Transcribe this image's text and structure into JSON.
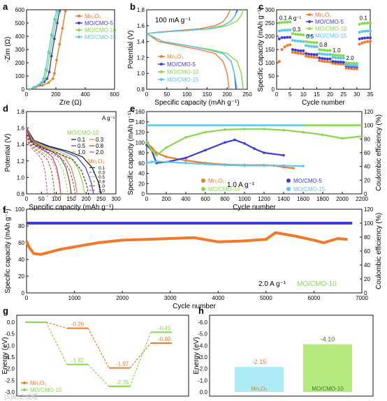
{
  "colors": {
    "mn2o3": "#F07A2C",
    "mo5": "#3C3CD6",
    "mo10": "#86D94A",
    "mo15": "#5BC8E8",
    "black": "#111111"
  },
  "chart_data": [
    {
      "panel": "a",
      "type": "line",
      "xlabel": "Zre (Ω)",
      "ylabel": "-Zim (Ω)",
      "xlim": [
        0,
        600
      ],
      "ylim": [
        0,
        600
      ],
      "xticks": [
        "0",
        "200",
        "400",
        "600"
      ],
      "yticks": [
        "0",
        "100",
        "200",
        "300",
        "400",
        "500",
        "600"
      ],
      "legend": [
        "Mn₂O₃",
        "MO/CMO-5",
        "MO/CMO-10",
        "MO/CMO-15"
      ],
      "series": [
        {
          "name": "Mn₂O₃",
          "x": [
            20,
            60,
            110,
            150,
            180,
            190,
            205,
            225,
            245,
            265
          ],
          "y": [
            0,
            15,
            30,
            50,
            80,
            120,
            220,
            340,
            460,
            590
          ]
        },
        {
          "name": "MO/CMO-5",
          "x": [
            20,
            50,
            90,
            120,
            140,
            155,
            170,
            190,
            210,
            225
          ],
          "y": [
            0,
            15,
            35,
            55,
            80,
            130,
            250,
            380,
            500,
            590
          ]
        },
        {
          "name": "MO/CMO-10",
          "x": [
            20,
            50,
            80,
            110,
            125,
            140,
            160,
            180,
            200,
            215
          ],
          "y": [
            0,
            15,
            30,
            50,
            80,
            140,
            270,
            400,
            520,
            590
          ]
        },
        {
          "name": "MO/CMO-15",
          "x": [
            20,
            50,
            80,
            100,
            115,
            130,
            150,
            170,
            190,
            205
          ],
          "y": [
            0,
            15,
            30,
            50,
            80,
            150,
            280,
            410,
            530,
            590
          ]
        }
      ]
    },
    {
      "panel": "b",
      "type": "line",
      "xlabel": "Specific capacity (mAh g⁻¹)",
      "ylabel": "Potential (V)",
      "annotation": "100 mA g⁻¹",
      "xlim": [
        0,
        250
      ],
      "ylim": [
        0.8,
        1.8
      ],
      "xticks": [
        "0",
        "50",
        "100",
        "150",
        "200",
        "250"
      ],
      "yticks": [
        "0.8",
        "1.0",
        "1.2",
        "1.4",
        "1.6",
        "1.8"
      ],
      "legend": [
        "Mn₂O₃",
        "MO/CMO-5",
        "MO/CMO-10",
        "MO/CMO-15"
      ],
      "series": [
        {
          "name": "Mn₂O₃ charge",
          "x": [
            0,
            30,
            80,
            130,
            170,
            190,
            200,
            208
          ],
          "y": [
            1.5,
            1.52,
            1.54,
            1.56,
            1.6,
            1.65,
            1.72,
            1.8
          ]
        },
        {
          "name": "Mn₂O₃ discharge",
          "x": [
            0,
            30,
            80,
            130,
            170,
            190,
            200,
            205
          ],
          "y": [
            1.5,
            1.4,
            1.35,
            1.3,
            1.25,
            1.15,
            1.0,
            0.8
          ]
        },
        {
          "name": "MO/CMO-5 charge",
          "x": [
            0,
            40,
            100,
            150,
            190,
            210,
            220,
            225
          ],
          "y": [
            1.5,
            1.52,
            1.54,
            1.56,
            1.6,
            1.66,
            1.73,
            1.8
          ]
        },
        {
          "name": "MO/CMO-5 discharge",
          "x": [
            0,
            40,
            100,
            150,
            190,
            210,
            218,
            222
          ],
          "y": [
            1.5,
            1.4,
            1.35,
            1.3,
            1.25,
            1.15,
            1.0,
            0.8
          ]
        },
        {
          "name": "MO/CMO-10 charge",
          "x": [
            0,
            40,
            100,
            160,
            200,
            225,
            235,
            240
          ],
          "y": [
            1.5,
            1.52,
            1.54,
            1.56,
            1.6,
            1.66,
            1.73,
            1.8
          ]
        },
        {
          "name": "MO/CMO-10 discharge",
          "x": [
            0,
            40,
            100,
            160,
            200,
            225,
            235,
            240
          ],
          "y": [
            1.5,
            1.4,
            1.35,
            1.3,
            1.25,
            1.15,
            1.0,
            0.8
          ]
        },
        {
          "name": "MO/CMO-15 charge",
          "x": [
            0,
            40,
            100,
            150,
            190,
            210,
            220,
            228
          ],
          "y": [
            1.5,
            1.52,
            1.54,
            1.56,
            1.6,
            1.66,
            1.73,
            1.8
          ]
        },
        {
          "name": "MO/CMO-15 discharge",
          "x": [
            0,
            40,
            100,
            150,
            190,
            210,
            218,
            225
          ],
          "y": [
            1.5,
            1.4,
            1.35,
            1.3,
            1.25,
            1.15,
            1.0,
            0.8
          ]
        }
      ]
    },
    {
      "panel": "c",
      "type": "scatter",
      "xlabel": "Cycle number",
      "ylabel": "Specific capacity (mAh g⁻¹)",
      "xlim": [
        0,
        35
      ],
      "ylim": [
        0,
        300
      ],
      "xticks": [
        "0",
        "5",
        "10",
        "15",
        "20",
        "25",
        "30",
        "35"
      ],
      "yticks": [
        "0",
        "50",
        "100",
        "150",
        "200",
        "250",
        "300"
      ],
      "rate_labels": [
        "0.1 A g⁻¹",
        "0.3",
        "0.5",
        "0.8",
        "1.0",
        "2.0",
        "0.1"
      ],
      "legend": [
        "Mn₂O₃",
        "MO/CMO-5",
        "MO/CMO-10",
        "MO/CMO-15"
      ],
      "series": [
        {
          "name": "Mn₂O₃",
          "x": [
            1,
            2,
            3,
            4,
            5,
            6,
            7,
            8,
            9,
            10,
            11,
            12,
            13,
            14,
            15,
            16,
            17,
            18,
            19,
            20,
            21,
            22,
            23,
            24,
            25,
            26,
            27,
            28,
            29,
            30,
            31,
            32,
            33,
            34,
            35
          ],
          "y": [
            105,
            150,
            160,
            165,
            168,
            140,
            138,
            136,
            135,
            134,
            125,
            123,
            122,
            121,
            120,
            108,
            106,
            105,
            104,
            103,
            98,
            97,
            96,
            95,
            95,
            80,
            79,
            78,
            77,
            77,
            170,
            175,
            178,
            180,
            180
          ]
        },
        {
          "name": "MO/CMO-5",
          "x": [
            1,
            2,
            3,
            4,
            5,
            6,
            7,
            8,
            9,
            10,
            11,
            12,
            13,
            14,
            15,
            16,
            17,
            18,
            19,
            20,
            21,
            22,
            23,
            24,
            25,
            26,
            27,
            28,
            29,
            30,
            31,
            32,
            33,
            34,
            35
          ],
          "y": [
            190,
            195,
            195,
            196,
            196,
            150,
            148,
            146,
            145,
            145,
            135,
            133,
            132,
            131,
            131,
            118,
            116,
            115,
            114,
            114,
            105,
            104,
            103,
            103,
            102,
            88,
            87,
            86,
            86,
            85,
            190,
            192,
            193,
            194,
            194
          ]
        },
        {
          "name": "MO/CMO-10",
          "x": [
            1,
            2,
            3,
            4,
            5,
            6,
            7,
            8,
            9,
            10,
            11,
            12,
            13,
            14,
            15,
            16,
            17,
            18,
            19,
            20,
            21,
            22,
            23,
            24,
            25,
            26,
            27,
            28,
            29,
            30,
            31,
            32,
            33,
            34,
            35
          ],
          "y": [
            250,
            252,
            253,
            253,
            254,
            210,
            208,
            207,
            206,
            205,
            180,
            178,
            177,
            176,
            176,
            150,
            148,
            147,
            146,
            146,
            130,
            129,
            128,
            127,
            127,
            100,
            99,
            98,
            98,
            97,
            245,
            248,
            249,
            250,
            250
          ]
        },
        {
          "name": "MO/CMO-15",
          "x": [
            1,
            2,
            3,
            4,
            5,
            6,
            7,
            8,
            9,
            10,
            11,
            12,
            13,
            14,
            15,
            16,
            17,
            18,
            19,
            20,
            21,
            22,
            23,
            24,
            25,
            26,
            27,
            28,
            29,
            30,
            31,
            32,
            33,
            34,
            35
          ],
          "y": [
            220,
            222,
            223,
            223,
            224,
            185,
            183,
            182,
            181,
            180,
            165,
            163,
            162,
            161,
            161,
            135,
            133,
            132,
            131,
            131,
            120,
            119,
            118,
            117,
            117,
            92,
            91,
            90,
            90,
            89,
            215,
            218,
            219,
            220,
            220
          ]
        }
      ]
    },
    {
      "panel": "d",
      "type": "line",
      "xlabel": "Specific capacity (mAh g⁻¹)",
      "ylabel": "Potential (V)",
      "xlim": [
        0,
        300
      ],
      "ylim": [
        0.8,
        1.8
      ],
      "xticks": [
        "0",
        "50",
        "100",
        "150",
        "200",
        "250",
        "300"
      ],
      "yticks": [
        "0.8",
        "1.0",
        "1.2",
        "1.4",
        "1.6",
        "1.8"
      ],
      "legend_title_a": "A g⁻¹",
      "legend_title_b": "MO/CMO-10",
      "legend_title_c": "Mn₂O₃",
      "rates_mo10": [
        "0.1",
        "0.5",
        "1.0",
        "0.3",
        "0.8",
        "2.0"
      ],
      "rates_mn2o3": [
        "0.1",
        "0.3",
        "0.5",
        "0.8",
        "1.0",
        "2.0"
      ],
      "curve_colors": [
        "#111111",
        "#3C3CD6",
        "#86D94A",
        "#F07A2C",
        "#8B4513",
        "#C23B8F"
      ],
      "capacities_mo10": [
        250,
        225,
        195,
        170,
        150,
        115
      ],
      "capacities_mn2o3": [
        210,
        165,
        140,
        115,
        95,
        70
      ]
    },
    {
      "panel": "e",
      "type": "scatter",
      "xlabel": "Cycle number",
      "ylabel": "Specific capacity (mAh g⁻¹)",
      "y2label": "Coulombic efficiency (%)",
      "annotation": "1.0 A g⁻¹",
      "xlim": [
        0,
        2200
      ],
      "ylim": [
        0,
        160
      ],
      "y2lim": [
        0,
        120
      ],
      "xticks": [
        "0",
        "200",
        "400",
        "600",
        "800",
        "1000",
        "1200",
        "1400",
        "1600",
        "1800",
        "2000",
        "2200"
      ],
      "yticks": [
        "0",
        "20",
        "40",
        "60",
        "80",
        "100",
        "120",
        "140",
        "160"
      ],
      "y2ticks": [
        "0",
        "20",
        "40",
        "60",
        "80",
        "100",
        "120"
      ],
      "legend": [
        "Mn₂O₃",
        "MO/CMO-5",
        "MO/CMO-10",
        "MO/CMO-15"
      ],
      "series": [
        {
          "name": "Mn₂O₃",
          "x": [
            0,
            50,
            100,
            200,
            400,
            600,
            800,
            1000,
            1200,
            1300,
            1400,
            1500
          ],
          "y": [
            100,
            90,
            80,
            72,
            65,
            60,
            57,
            56,
            56,
            55,
            52,
            50
          ]
        },
        {
          "name": "MO/CMO-5",
          "x": [
            0,
            50,
            100,
            200,
            400,
            600,
            800,
            900,
            1000,
            1100,
            1200,
            1400
          ],
          "y": [
            95,
            85,
            60,
            62,
            70,
            85,
            100,
            105,
            98,
            88,
            80,
            75
          ]
        },
        {
          "name": "MO/CMO-10",
          "x": [
            0,
            50,
            100,
            200,
            400,
            600,
            800,
            1000,
            1200,
            1400,
            1600,
            1800,
            2000,
            2200
          ],
          "y": [
            100,
            85,
            75,
            90,
            110,
            120,
            125,
            126,
            126,
            124,
            120,
            115,
            108,
            112
          ]
        },
        {
          "name": "MO/CMO-15",
          "x": [
            0,
            50,
            100,
            200,
            400,
            600,
            800,
            1000,
            1200,
            1400,
            1600
          ],
          "y": [
            60,
            62,
            63,
            62,
            60,
            58,
            56,
            55,
            55,
            55,
            54
          ]
        }
      ],
      "ce_value": 100
    },
    {
      "panel": "f",
      "type": "scatter",
      "xlabel": "Cycle number",
      "ylabel": "Specific capacity (mAh g⁻¹)",
      "y2label": "Coulombic efficiency (%)",
      "annotation": "2.0 A g⁻¹",
      "label": "MO/CMO-10",
      "xlim": [
        0,
        7000
      ],
      "ylim": [
        0,
        100
      ],
      "y2lim": [
        0,
        120
      ],
      "xticks": [
        "0",
        "1000",
        "2000",
        "3000",
        "4000",
        "5000",
        "6000",
        "7000"
      ],
      "yticks": [
        "0",
        "20",
        "40",
        "60",
        "80",
        "100"
      ],
      "y2ticks": [
        "0",
        "20",
        "40",
        "60",
        "80",
        "100",
        "120"
      ],
      "series": [
        {
          "name": "capacity",
          "x": [
            0,
            50,
            150,
            300,
            500,
            700,
            1000,
            1500,
            2000,
            2500,
            3000,
            3500,
            4000,
            4500,
            5000,
            5200,
            5600,
            6000,
            6200,
            6500,
            6700
          ],
          "y": [
            62,
            55,
            47,
            46,
            49,
            52,
            55,
            60,
            63,
            64,
            65,
            66,
            61,
            62,
            64,
            72,
            68,
            63,
            60,
            65,
            64
          ]
        }
      ],
      "ce_value": 100
    },
    {
      "panel": "g",
      "type": "line",
      "ylabel": "Energy (eV)",
      "yticks": [
        "0.0",
        "-0.5",
        "-1.0",
        "-1.5",
        "-2.0",
        "-2.5",
        "-3.0"
      ],
      "legend": [
        "Mn₂O₃",
        "MO/CMO-10"
      ],
      "labels": [
        "-0.26",
        "-1.82",
        "-1.97",
        "-2.76",
        "-0.43",
        "-0.90"
      ],
      "series": [
        {
          "name": "Mn₂O₃",
          "steps": [
            0.0,
            -0.26,
            -1.97,
            -0.9
          ]
        },
        {
          "name": "MO/CMO-10",
          "steps": [
            0.0,
            -1.82,
            -2.76,
            -0.43
          ]
        }
      ]
    },
    {
      "panel": "h",
      "type": "bar",
      "ylabel": "Energy (eV)",
      "yticks": [
        "-6.0",
        "-5.0",
        "-4.0",
        "-3.0",
        "-2.0",
        "-1.0",
        "0.0"
      ],
      "categories": [
        "Mn₂O₃",
        "MO/CMO-10"
      ],
      "values": [
        -2.15,
        -4.1
      ],
      "value_labels": [
        "-2.15",
        "-4.10"
      ]
    }
  ],
  "watermark": "(S)研之成理"
}
